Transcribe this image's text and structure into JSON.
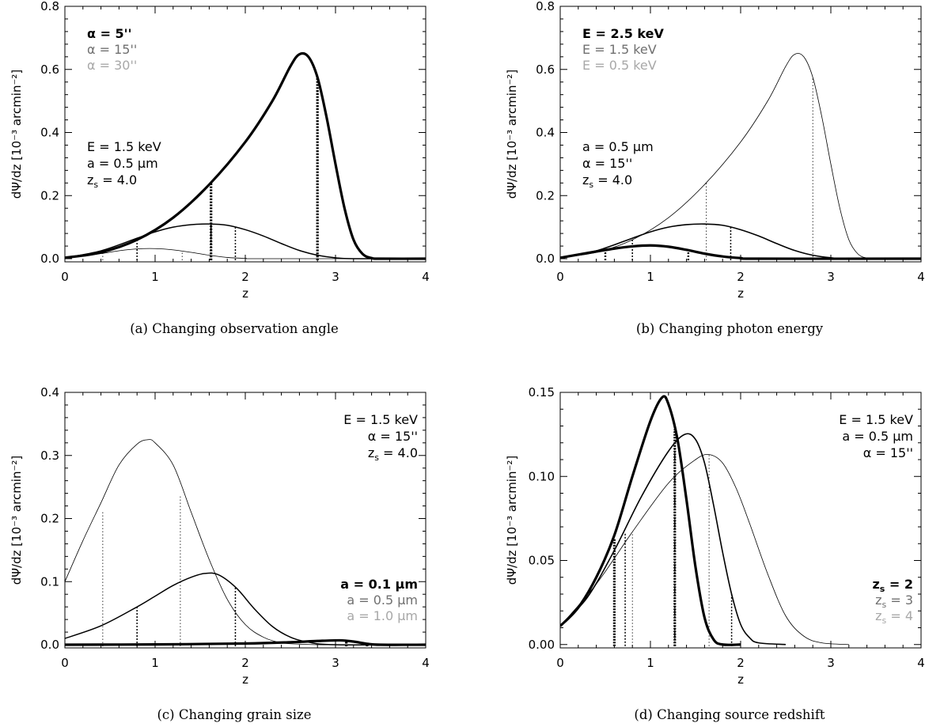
{
  "chart_data": [
    {
      "type": "line",
      "caption": "(a) Changing observation angle",
      "xlabel": "z",
      "ylabel": "dΨ/dz [10⁻³ arcmin⁻²]",
      "xlim": [
        0,
        4
      ],
      "ylim": [
        -0.01,
        0.8
      ],
      "xticks": [
        0,
        1,
        2,
        3,
        4
      ],
      "xtick_labels": [
        "0",
        "1",
        "2",
        "3",
        "4"
      ],
      "yticks": [
        0.0,
        0.2,
        0.4,
        0.6,
        0.8
      ],
      "ytick_labels": [
        "0.0",
        "0.2",
        "0.4",
        "0.6",
        "0.8"
      ],
      "legend": [
        "α = 5''",
        "α = 15''",
        "α = 30''"
      ],
      "params": [
        "E = 1.5 keV",
        "a = 0.5 μm",
        "z_s = 4.0"
      ],
      "series": [
        {
          "name": "α = 5''",
          "color": "#000000",
          "lw": 3.2,
          "x": [
            0,
            0.4,
            0.8,
            1.2,
            1.6,
            2.0,
            2.3,
            2.5,
            2.6,
            2.7,
            2.8,
            2.9,
            3.0,
            3.1,
            3.2,
            3.3,
            3.4,
            3.5,
            4.0
          ],
          "y": [
            0.003,
            0.02,
            0.06,
            0.13,
            0.235,
            0.37,
            0.5,
            0.61,
            0.648,
            0.64,
            0.575,
            0.45,
            0.3,
            0.16,
            0.06,
            0.015,
            0.002,
            0,
            0
          ]
        },
        {
          "name": "α = 15''",
          "color": "#000000",
          "lw": 1.5,
          "x": [
            0,
            0.4,
            0.8,
            1.0,
            1.2,
            1.4,
            1.6,
            1.8,
            2.0,
            2.2,
            2.4,
            2.6,
            2.8,
            3.0,
            3.2,
            4.0
          ],
          "y": [
            0.003,
            0.025,
            0.065,
            0.085,
            0.1,
            0.108,
            0.11,
            0.106,
            0.092,
            0.072,
            0.048,
            0.026,
            0.011,
            0.003,
            0,
            0
          ]
        },
        {
          "name": "α = 30''",
          "color": "#000000",
          "lw": 0.8,
          "x": [
            0,
            0.3,
            0.6,
            0.8,
            1.0,
            1.2,
            1.4,
            1.6,
            1.8,
            2.0,
            2.2,
            4.0
          ],
          "y": [
            0.003,
            0.012,
            0.025,
            0.031,
            0.032,
            0.028,
            0.02,
            0.011,
            0.004,
            0.001,
            0,
            0
          ]
        }
      ],
      "markers": [
        {
          "x": 0.42,
          "y": 0.018,
          "lw": 0.8,
          "dash": "1.5,2.5"
        },
        {
          "x": 0.8,
          "y": 0.06,
          "lw": 1.5,
          "dash": "2,2"
        },
        {
          "x": 1.3,
          "y": 0.025,
          "lw": 0.8,
          "dash": "1.5,2.5"
        },
        {
          "x": 1.62,
          "y": 0.24,
          "lw": 3.2,
          "dash": "2.2,1.6"
        },
        {
          "x": 1.62,
          "y": 0.11,
          "lw": 1.5,
          "dash": "2,2"
        },
        {
          "x": 1.89,
          "y": 0.1,
          "lw": 1.5,
          "dash": "2,2"
        },
        {
          "x": 2.8,
          "y": 0.575,
          "lw": 3.2,
          "dash": "2.2,1.6"
        }
      ]
    },
    {
      "type": "line",
      "caption": "(b) Changing photon energy",
      "xlabel": "z",
      "ylabel": "dΨ/dz [10⁻³ arcmin⁻²]",
      "xlim": [
        0,
        4
      ],
      "ylim": [
        -0.01,
        0.8
      ],
      "xticks": [
        0,
        1,
        2,
        3,
        4
      ],
      "xtick_labels": [
        "0",
        "1",
        "2",
        "3",
        "4"
      ],
      "yticks": [
        0.0,
        0.2,
        0.4,
        0.6,
        0.8
      ],
      "ytick_labels": [
        "0.0",
        "0.2",
        "0.4",
        "0.6",
        "0.8"
      ],
      "legend": [
        "E = 2.5 keV",
        "E = 1.5 keV",
        "E = 0.5 keV"
      ],
      "params": [
        "a = 0.5 μm",
        "α = 15''",
        "z_s = 4.0"
      ],
      "series": [
        {
          "name": "E = 2.5 keV",
          "color": "#000000",
          "lw": 0.8,
          "x": [
            0,
            0.4,
            0.8,
            1.2,
            1.6,
            2.0,
            2.3,
            2.5,
            2.6,
            2.7,
            2.8,
            2.9,
            3.0,
            3.1,
            3.2,
            3.3,
            3.4,
            3.5,
            4.0
          ],
          "y": [
            0.003,
            0.02,
            0.06,
            0.13,
            0.235,
            0.37,
            0.5,
            0.61,
            0.648,
            0.64,
            0.575,
            0.45,
            0.3,
            0.16,
            0.06,
            0.015,
            0.002,
            0,
            0
          ]
        },
        {
          "name": "E = 1.5 keV",
          "color": "#000000",
          "lw": 1.6,
          "x": [
            0,
            0.4,
            0.8,
            1.0,
            1.2,
            1.4,
            1.6,
            1.8,
            2.0,
            2.2,
            2.4,
            2.6,
            2.8,
            3.0,
            3.2,
            4.0
          ],
          "y": [
            0.003,
            0.025,
            0.065,
            0.085,
            0.1,
            0.108,
            0.11,
            0.106,
            0.092,
            0.072,
            0.048,
            0.026,
            0.011,
            0.003,
            0,
            0
          ]
        },
        {
          "name": "E = 0.5 keV",
          "color": "#000000",
          "lw": 3.2,
          "x": [
            0,
            0.3,
            0.6,
            0.8,
            1.0,
            1.2,
            1.4,
            1.6,
            1.8,
            2.0,
            2.2,
            4.0
          ],
          "y": [
            0.003,
            0.018,
            0.032,
            0.039,
            0.042,
            0.038,
            0.028,
            0.016,
            0.007,
            0.002,
            0,
            0
          ]
        }
      ],
      "markers": [
        {
          "x": 0.5,
          "y": 0.022,
          "lw": 2.4,
          "dash": "2,2"
        },
        {
          "x": 0.8,
          "y": 0.065,
          "lw": 1.5,
          "dash": "2,2"
        },
        {
          "x": 1.42,
          "y": 0.028,
          "lw": 2.4,
          "dash": "2,2"
        },
        {
          "x": 1.62,
          "y": 0.24,
          "lw": 0.8,
          "dash": "1.5,2.5"
        },
        {
          "x": 1.89,
          "y": 0.1,
          "lw": 1.5,
          "dash": "2,2"
        },
        {
          "x": 2.8,
          "y": 0.575,
          "lw": 0.8,
          "dash": "1.5,2.5"
        }
      ]
    },
    {
      "type": "line",
      "caption": "(c) Changing grain size",
      "xlabel": "z",
      "ylabel": "dΨ/dz [10⁻³ arcmin⁻²]",
      "xlim": [
        0,
        4
      ],
      "ylim": [
        -0.005,
        0.4
      ],
      "xticks": [
        0,
        1,
        2,
        3,
        4
      ],
      "xtick_labels": [
        "0",
        "1",
        "2",
        "3",
        "4"
      ],
      "yticks": [
        0.0,
        0.1,
        0.2,
        0.3,
        0.4
      ],
      "ytick_labels": [
        "0.0",
        "0.1",
        "0.2",
        "0.3",
        "0.4"
      ],
      "legend": [
        "a = 0.1 μm",
        "a = 0.5 μm",
        "a = 1.0 μm"
      ],
      "params": [
        "E = 1.5 keV",
        "α = 15''",
        "z_s = 4.0"
      ],
      "series": [
        {
          "name": "a = 0.1 μm",
          "color": "#000000",
          "lw": 0.8,
          "x": [
            0,
            0.2,
            0.4,
            0.6,
            0.8,
            0.92,
            1.0,
            1.2,
            1.4,
            1.6,
            1.8,
            2.0,
            2.2,
            2.4,
            2.6,
            2.8,
            3.0
          ],
          "y": [
            0.1,
            0.165,
            0.225,
            0.285,
            0.318,
            0.325,
            0.32,
            0.285,
            0.21,
            0.135,
            0.072,
            0.032,
            0.012,
            0.003,
            0.001,
            0,
            0
          ]
        },
        {
          "name": "a = 0.5 μm",
          "color": "#000000",
          "lw": 1.5,
          "x": [
            0,
            0.4,
            0.8,
            1.0,
            1.2,
            1.4,
            1.55,
            1.7,
            1.9,
            2.1,
            2.3,
            2.5,
            2.7,
            3.0,
            4.0
          ],
          "y": [
            0.01,
            0.03,
            0.06,
            0.077,
            0.094,
            0.107,
            0.113,
            0.111,
            0.09,
            0.057,
            0.029,
            0.012,
            0.004,
            0,
            0
          ]
        },
        {
          "name": "a = 1.0 μm",
          "color": "#000000",
          "lw": 3.2,
          "x": [
            0,
            1.0,
            2.0,
            2.5,
            2.8,
            3.05,
            3.2,
            3.35,
            3.5,
            4.0
          ],
          "y": [
            0,
            0.0005,
            0.002,
            0.004,
            0.006,
            0.007,
            0.005,
            0.0015,
            0,
            0
          ]
        }
      ],
      "markers": [
        {
          "x": 0.42,
          "y": 0.21,
          "lw": 0.8,
          "dash": "1.5,2.5"
        },
        {
          "x": 0.8,
          "y": 0.06,
          "lw": 1.5,
          "dash": "2,2"
        },
        {
          "x": 1.28,
          "y": 0.235,
          "lw": 0.8,
          "dash": "1.5,2.5"
        },
        {
          "x": 1.89,
          "y": 0.093,
          "lw": 1.5,
          "dash": "2,2"
        },
        {
          "x": 3.12,
          "y": 0.006,
          "lw": 3.2,
          "dash": "2,1.5"
        },
        {
          "x": 3.35,
          "y": 0.002,
          "lw": 3.2,
          "dash": "2,1.5"
        }
      ]
    },
    {
      "type": "line",
      "caption": "(d) Changing source redshift",
      "xlabel": "z",
      "ylabel": "dΨ/dz [10⁻³ arcmin⁻²]",
      "xlim": [
        0,
        4
      ],
      "ylim": [
        -0.002,
        0.15
      ],
      "xticks": [
        0,
        1,
        2,
        3,
        4
      ],
      "xtick_labels": [
        "0",
        "1",
        "2",
        "3",
        "4"
      ],
      "yticks": [
        0.0,
        0.05,
        0.1,
        0.15
      ],
      "ytick_labels": [
        "0.00",
        "0.05",
        "0.10",
        "0.15"
      ],
      "legend": [
        "z_s = 2",
        "z_s = 3",
        "z_s = 4"
      ],
      "params": [
        "E = 1.5 keV",
        "a = 0.5 μm",
        "α = 15''"
      ],
      "series": [
        {
          "name": "z_s = 2",
          "color": "#000000",
          "lw": 3.2,
          "x": [
            0,
            0.2,
            0.4,
            0.6,
            0.8,
            1.0,
            1.13,
            1.2,
            1.3,
            1.4,
            1.5,
            1.6,
            1.7,
            1.8,
            2.0
          ],
          "y": [
            0.011,
            0.022,
            0.04,
            0.065,
            0.1,
            0.133,
            0.147,
            0.143,
            0.122,
            0.086,
            0.046,
            0.016,
            0.003,
            0,
            0
          ]
        },
        {
          "name": "z_s = 3",
          "color": "#000000",
          "lw": 1.6,
          "x": [
            0,
            0.3,
            0.6,
            0.9,
            1.2,
            1.38,
            1.5,
            1.6,
            1.7,
            1.8,
            1.9,
            2.0,
            2.1,
            2.2,
            2.5
          ],
          "y": [
            0.011,
            0.028,
            0.056,
            0.088,
            0.115,
            0.125,
            0.122,
            0.108,
            0.083,
            0.055,
            0.03,
            0.012,
            0.004,
            0.001,
            0
          ]
        },
        {
          "name": "z_s = 4",
          "color": "#000000",
          "lw": 0.8,
          "x": [
            0,
            0.4,
            0.8,
            1.2,
            1.5,
            1.65,
            1.8,
            1.95,
            2.1,
            2.3,
            2.5,
            2.7,
            2.9,
            3.2
          ],
          "y": [
            0.011,
            0.036,
            0.067,
            0.096,
            0.11,
            0.113,
            0.108,
            0.093,
            0.072,
            0.042,
            0.017,
            0.005,
            0.001,
            0
          ]
        }
      ],
      "markers": [
        {
          "x": 0.6,
          "y": 0.063,
          "lw": 3.2,
          "dash": "2,1.5"
        },
        {
          "x": 0.72,
          "y": 0.066,
          "lw": 1.5,
          "dash": "2,2"
        },
        {
          "x": 0.8,
          "y": 0.067,
          "lw": 0.8,
          "dash": "1.5,2.5"
        },
        {
          "x": 1.27,
          "y": 0.128,
          "lw": 3.2,
          "dash": "2,1.5"
        },
        {
          "x": 1.27,
          "y": 0.12,
          "lw": 1.5,
          "dash": "2,2"
        },
        {
          "x": 1.65,
          "y": 0.113,
          "lw": 0.8,
          "dash": "1.5,2.5"
        },
        {
          "x": 1.9,
          "y": 0.03,
          "lw": 1.5,
          "dash": "2,2"
        }
      ]
    }
  ]
}
